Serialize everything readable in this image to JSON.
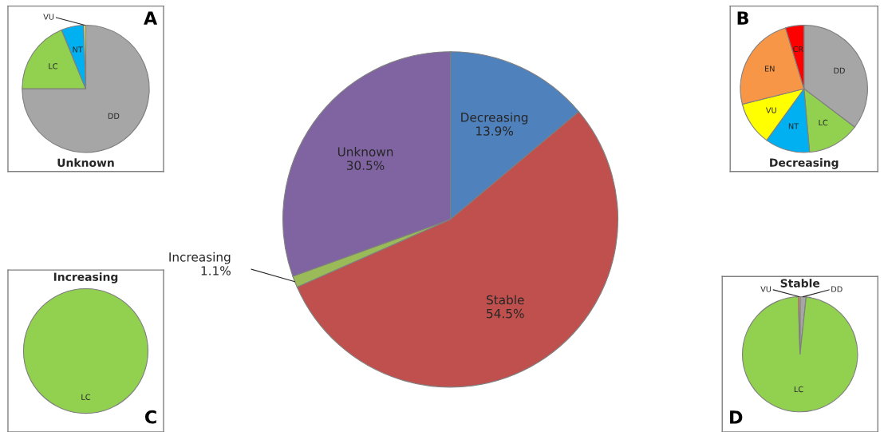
{
  "chart_data": [
    {
      "type": "pie",
      "categories": [
        "Decreasing",
        "Stable",
        "Increasing",
        "Unknown"
      ],
      "values": [
        13.9,
        54.5,
        1.1,
        30.5
      ],
      "colors": [
        "#4f81bd",
        "#c0504d",
        "#9bbb59",
        "#8064a2"
      ],
      "value_labels": [
        "13.9%",
        "54.5%",
        "1.1%",
        "30.5%"
      ]
    },
    {
      "type": "pie",
      "title": "Unknown",
      "annotations": [
        "A"
      ],
      "categories": [
        "DD",
        "LC",
        "NT",
        "VU"
      ],
      "values": [
        75,
        18.8,
        5.7,
        0.5
      ],
      "colors": [
        "#a6a6a6",
        "#92d050",
        "#00b0f0",
        "#ffff66"
      ]
    },
    {
      "type": "pie",
      "title": "Decreasing",
      "annotations": [
        "B"
      ],
      "categories": [
        "DD",
        "LC",
        "NT",
        "VU",
        "EN",
        "CR"
      ],
      "values": [
        35.3,
        13.3,
        11.4,
        11.1,
        24.2,
        4.7
      ],
      "colors": [
        "#a6a6a6",
        "#92d050",
        "#00b0f0",
        "#ffff00",
        "#f79646",
        "#ff0000"
      ]
    },
    {
      "type": "pie",
      "title": "Increasing",
      "annotations": [
        "C"
      ],
      "categories": [
        "LC"
      ],
      "values": [
        100
      ],
      "colors": [
        "#92d050"
      ]
    },
    {
      "type": "pie",
      "title": "Stable",
      "annotations": [
        "D"
      ],
      "categories": [
        "DD",
        "LC",
        "VU"
      ],
      "values": [
        1.7,
        97.8,
        0.5
      ],
      "colors": [
        "#a6a6a6",
        "#92d050",
        "#f79646"
      ]
    }
  ]
}
